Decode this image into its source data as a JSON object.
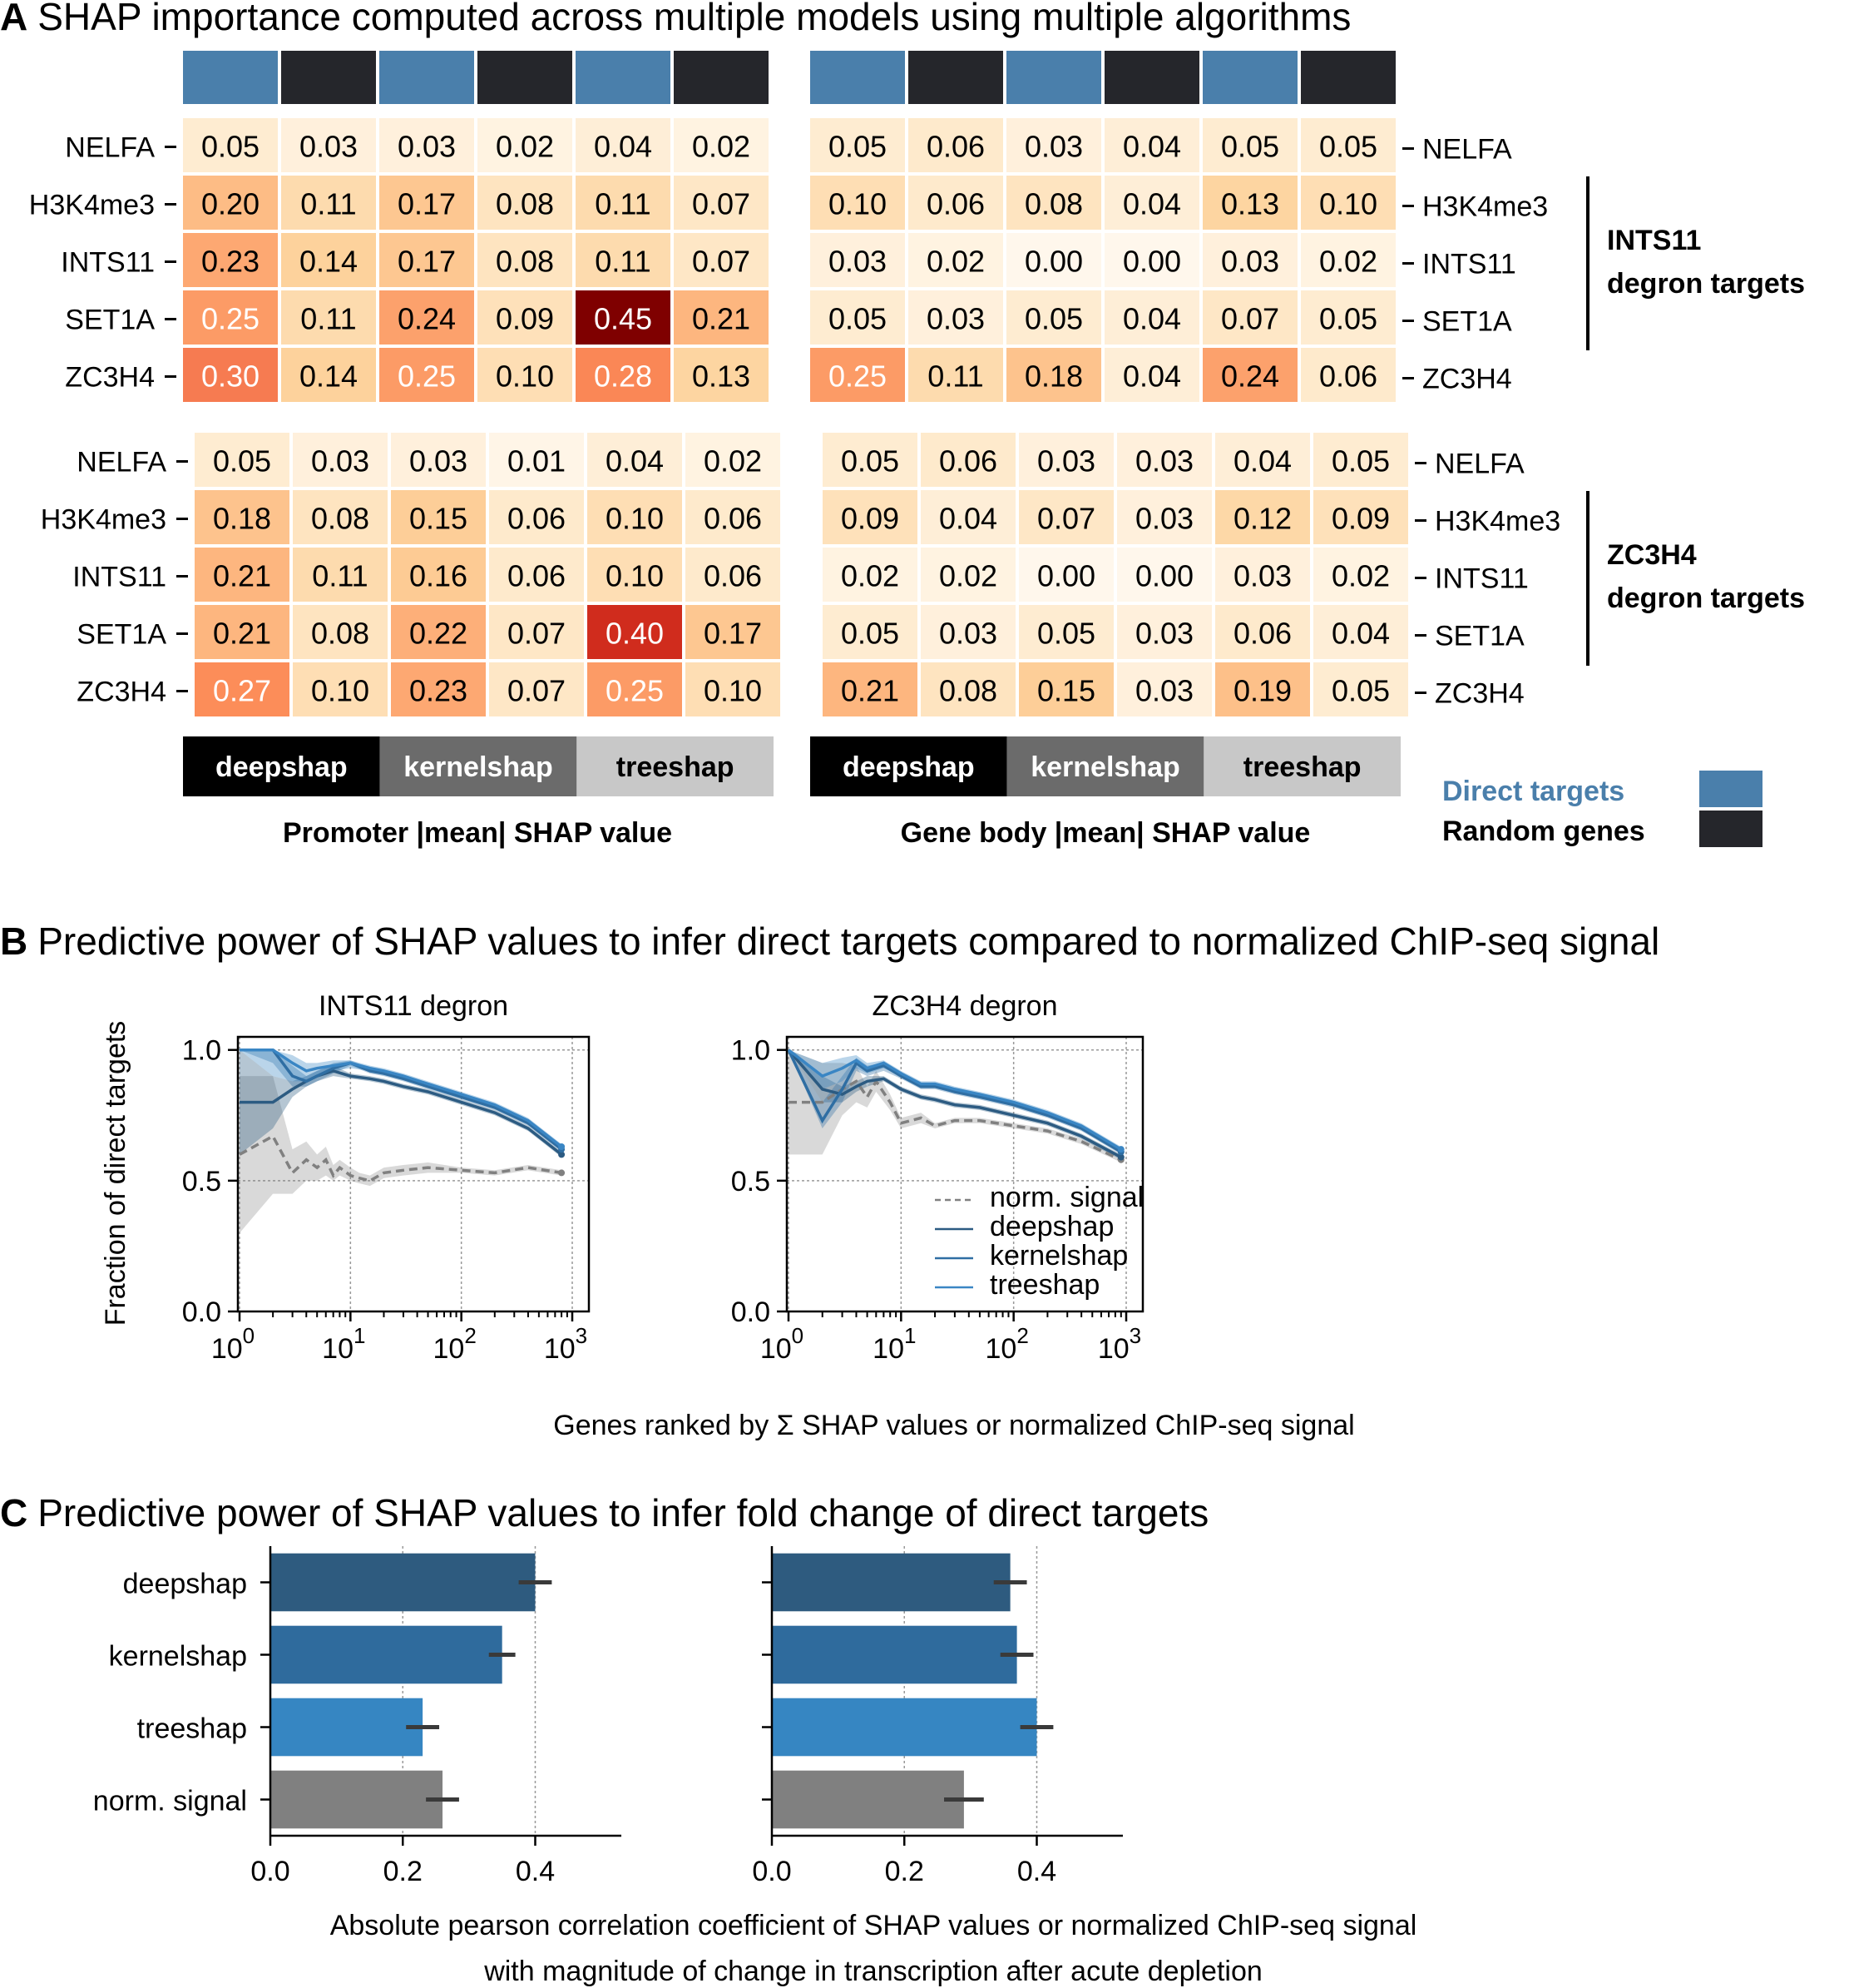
{
  "panel_a": {
    "letter": "A",
    "title": "SHAP importance computed across multiple models using multiple algorithms",
    "rows": [
      "NELFA",
      "H3K4me3",
      "INTS11",
      "SET1A",
      "ZC3H4"
    ],
    "column_pattern": [
      "Direct targets",
      "Random genes",
      "Direct targets",
      "Random genes",
      "Direct targets",
      "Random genes"
    ],
    "algorithms": [
      "deepshap",
      "kernelshap",
      "treeshap"
    ],
    "promoter_xlabel": "Promoter |mean| SHAP value",
    "genebody_xlabel": "Gene body |mean| SHAP value",
    "group1_label_line1": "INTS11",
    "group1_label_line2": "degron targets",
    "group2_label_line1": "ZC3H4",
    "group2_label_line2": "degron targets",
    "legend": {
      "direct": "Direct targets",
      "random": "Random genes"
    },
    "colors": {
      "direct": "#4a7fab",
      "random": "#25262b",
      "deepshap": "#000000",
      "kernelshap": "#6b6b6b",
      "treeshap": "#c8c8c8",
      "direct_label": "#4a7fab"
    }
  },
  "panel_b": {
    "letter": "B",
    "title": "Predictive power of SHAP values to infer direct targets compared to normalized ChIP-seq signal",
    "ylabel": "Fraction of direct targets",
    "xlabel": "Genes ranked by Σ SHAP values or normalized ChIP-seq signal",
    "legend": [
      "norm. signal",
      "deepshap",
      "kernelshap",
      "treeshap"
    ]
  },
  "panel_c": {
    "letter": "C",
    "title": "Predictive power of SHAP values to infer fold change of direct targets",
    "xlabel_line1": "Absolute pearson correlation coefficient of SHAP values or normalized ChIP-seq signal",
    "xlabel_line2": "with magnitude of change in transcription after acute depletion"
  },
  "chart_data": [
    {
      "type": "heatmap",
      "group": "INTS11 degron targets",
      "region": "Promoter",
      "rows": [
        "NELFA",
        "H3K4me3",
        "INTS11",
        "SET1A",
        "ZC3H4"
      ],
      "columns": [
        "deepshap Direct targets",
        "deepshap Random genes",
        "kernelshap Direct targets",
        "kernelshap Random genes",
        "treeshap Direct targets",
        "treeshap Random genes"
      ],
      "values": [
        [
          0.05,
          0.03,
          0.03,
          0.02,
          0.04,
          0.02
        ],
        [
          0.2,
          0.11,
          0.17,
          0.08,
          0.11,
          0.07
        ],
        [
          0.23,
          0.14,
          0.17,
          0.08,
          0.11,
          0.07
        ],
        [
          0.25,
          0.11,
          0.24,
          0.09,
          0.45,
          0.21
        ],
        [
          0.3,
          0.14,
          0.25,
          0.1,
          0.28,
          0.13
        ]
      ]
    },
    {
      "type": "heatmap",
      "group": "INTS11 degron targets",
      "region": "Gene body",
      "rows": [
        "NELFA",
        "H3K4me3",
        "INTS11",
        "SET1A",
        "ZC3H4"
      ],
      "columns": [
        "deepshap Direct targets",
        "deepshap Random genes",
        "kernelshap Direct targets",
        "kernelshap Random genes",
        "treeshap Direct targets",
        "treeshap Random genes"
      ],
      "values": [
        [
          0.05,
          0.06,
          0.03,
          0.04,
          0.05,
          0.05
        ],
        [
          0.1,
          0.06,
          0.08,
          0.04,
          0.13,
          0.1
        ],
        [
          0.03,
          0.02,
          0.0,
          0.0,
          0.03,
          0.02
        ],
        [
          0.05,
          0.03,
          0.05,
          0.04,
          0.07,
          0.05
        ],
        [
          0.25,
          0.11,
          0.18,
          0.04,
          0.24,
          0.06
        ]
      ]
    },
    {
      "type": "heatmap",
      "group": "ZC3H4 degron targets",
      "region": "Promoter",
      "rows": [
        "NELFA",
        "H3K4me3",
        "INTS11",
        "SET1A",
        "ZC3H4"
      ],
      "columns": [
        "deepshap Direct targets",
        "deepshap Random genes",
        "kernelshap Direct targets",
        "kernelshap Random genes",
        "treeshap Direct targets",
        "treeshap Random genes"
      ],
      "values": [
        [
          0.05,
          0.03,
          0.03,
          0.01,
          0.04,
          0.02
        ],
        [
          0.18,
          0.08,
          0.15,
          0.06,
          0.1,
          0.06
        ],
        [
          0.21,
          0.11,
          0.16,
          0.06,
          0.1,
          0.06
        ],
        [
          0.21,
          0.08,
          0.22,
          0.07,
          0.4,
          0.17
        ],
        [
          0.27,
          0.1,
          0.23,
          0.07,
          0.25,
          0.1
        ]
      ]
    },
    {
      "type": "heatmap",
      "group": "ZC3H4 degron targets",
      "region": "Gene body",
      "rows": [
        "NELFA",
        "H3K4me3",
        "INTS11",
        "SET1A",
        "ZC3H4"
      ],
      "columns": [
        "deepshap Direct targets",
        "deepshap Random genes",
        "kernelshap Direct targets",
        "kernelshap Random genes",
        "treeshap Direct targets",
        "treeshap Random genes"
      ],
      "values": [
        [
          0.05,
          0.06,
          0.03,
          0.03,
          0.04,
          0.05
        ],
        [
          0.09,
          0.04,
          0.07,
          0.03,
          0.12,
          0.09
        ],
        [
          0.02,
          0.02,
          0.0,
          0.0,
          0.03,
          0.02
        ],
        [
          0.05,
          0.03,
          0.05,
          0.03,
          0.06,
          0.04
        ],
        [
          0.21,
          0.08,
          0.15,
          0.03,
          0.19,
          0.05
        ]
      ]
    },
    {
      "type": "line",
      "title": "INTS11 degron",
      "xscale": "log",
      "xlim": [
        1,
        1000
      ],
      "ylim": [
        0,
        1.05
      ],
      "xticks": [
        1,
        10,
        100,
        1000
      ],
      "yticks": [
        0.0,
        0.5,
        1.0
      ],
      "xticklabels": [
        "10",
        "10",
        "10",
        "10"
      ],
      "xtick_exponents": [
        "0",
        "1",
        "2",
        "3"
      ],
      "yticklabels": [
        "0.0",
        "0.5",
        "1.0"
      ],
      "grid": true,
      "series": [
        {
          "name": "norm. signal",
          "style": "dashed",
          "color": "#808080",
          "x": [
            1,
            2,
            3,
            4,
            5,
            6,
            7,
            8,
            10,
            12,
            15,
            20,
            30,
            50,
            100,
            200,
            400,
            800
          ],
          "y": [
            0.6,
            0.67,
            0.53,
            0.58,
            0.55,
            0.58,
            0.52,
            0.55,
            0.52,
            0.51,
            0.5,
            0.53,
            0.54,
            0.55,
            0.54,
            0.53,
            0.55,
            0.53
          ],
          "band_low": [
            0.3,
            0.45,
            0.45,
            0.5,
            0.5,
            0.52,
            0.5,
            0.52,
            0.5,
            0.49,
            0.48,
            0.51,
            0.52,
            0.53,
            0.53,
            0.52,
            0.54,
            0.52
          ],
          "band_high": [
            0.9,
            0.9,
            0.62,
            0.65,
            0.6,
            0.63,
            0.56,
            0.58,
            0.55,
            0.53,
            0.52,
            0.55,
            0.56,
            0.57,
            0.55,
            0.54,
            0.56,
            0.54
          ]
        },
        {
          "name": "deepshap",
          "style": "solid",
          "color": "#2c5b82",
          "x": [
            1,
            2,
            3,
            4,
            5,
            7,
            10,
            15,
            20,
            30,
            50,
            100,
            200,
            400,
            800
          ],
          "y": [
            0.8,
            0.8,
            0.85,
            0.88,
            0.9,
            0.92,
            0.9,
            0.89,
            0.88,
            0.86,
            0.84,
            0.8,
            0.76,
            0.7,
            0.6
          ],
          "band_low": [
            0.6,
            0.7,
            0.82,
            0.86,
            0.88,
            0.9,
            0.89,
            0.88,
            0.87,
            0.85,
            0.83,
            0.79,
            0.75,
            0.69,
            0.59
          ],
          "band_high": [
            1.0,
            0.9,
            0.88,
            0.9,
            0.92,
            0.94,
            0.91,
            0.9,
            0.89,
            0.87,
            0.85,
            0.81,
            0.77,
            0.71,
            0.61
          ]
        },
        {
          "name": "kernelshap",
          "style": "solid",
          "color": "#2f6ea3",
          "x": [
            1,
            2,
            3,
            4,
            5,
            7,
            10,
            15,
            20,
            30,
            50,
            100,
            200,
            400,
            800
          ],
          "y": [
            1.0,
            1.0,
            0.9,
            0.88,
            0.9,
            0.93,
            0.95,
            0.92,
            0.91,
            0.89,
            0.86,
            0.82,
            0.78,
            0.72,
            0.62
          ],
          "band_low": [
            1.0,
            0.95,
            0.86,
            0.86,
            0.88,
            0.91,
            0.94,
            0.91,
            0.9,
            0.88,
            0.85,
            0.81,
            0.77,
            0.71,
            0.61
          ],
          "band_high": [
            1.0,
            1.0,
            0.94,
            0.9,
            0.92,
            0.95,
            0.96,
            0.93,
            0.92,
            0.9,
            0.87,
            0.83,
            0.79,
            0.73,
            0.63
          ]
        },
        {
          "name": "treeshap",
          "style": "solid",
          "color": "#3a86c4",
          "x": [
            1,
            2,
            3,
            4,
            5,
            7,
            10,
            15,
            20,
            30,
            50,
            100,
            200,
            400,
            800
          ],
          "y": [
            1.0,
            1.0,
            0.95,
            0.92,
            0.93,
            0.94,
            0.95,
            0.93,
            0.92,
            0.9,
            0.87,
            0.83,
            0.79,
            0.73,
            0.63
          ],
          "band_low": [
            1.0,
            0.9,
            0.88,
            0.88,
            0.9,
            0.92,
            0.93,
            0.92,
            0.91,
            0.89,
            0.86,
            0.82,
            0.78,
            0.72,
            0.62
          ],
          "band_high": [
            1.0,
            1.0,
            0.98,
            0.95,
            0.95,
            0.96,
            0.96,
            0.94,
            0.93,
            0.91,
            0.88,
            0.84,
            0.8,
            0.74,
            0.64
          ]
        }
      ]
    },
    {
      "type": "line",
      "title": "ZC3H4 degron",
      "xscale": "log",
      "xlim": [
        1,
        1000
      ],
      "ylim": [
        0,
        1.05
      ],
      "xticks": [
        1,
        10,
        100,
        1000
      ],
      "yticks": [
        0.0,
        0.5,
        1.0
      ],
      "xticklabels": [
        "10",
        "10",
        "10",
        "10"
      ],
      "xtick_exponents": [
        "0",
        "1",
        "2",
        "3"
      ],
      "yticklabels": [
        "0.0",
        "0.5",
        "1.0"
      ],
      "grid": true,
      "legend_position": "lower-right",
      "series": [
        {
          "name": "norm. signal",
          "style": "dashed",
          "color": "#808080",
          "x": [
            1,
            2,
            3,
            4,
            5,
            6,
            8,
            10,
            15,
            20,
            30,
            50,
            100,
            200,
            400,
            900
          ],
          "y": [
            0.8,
            0.8,
            0.85,
            0.88,
            0.82,
            0.88,
            0.8,
            0.72,
            0.74,
            0.71,
            0.73,
            0.73,
            0.71,
            0.69,
            0.65,
            0.58
          ],
          "band_low": [
            0.6,
            0.6,
            0.75,
            0.8,
            0.78,
            0.84,
            0.77,
            0.7,
            0.72,
            0.7,
            0.72,
            0.72,
            0.7,
            0.68,
            0.64,
            0.57
          ],
          "band_high": [
            1.0,
            0.95,
            0.95,
            0.94,
            0.86,
            0.92,
            0.83,
            0.74,
            0.76,
            0.72,
            0.74,
            0.74,
            0.72,
            0.7,
            0.66,
            0.59
          ]
        },
        {
          "name": "deepshap",
          "style": "solid",
          "color": "#2c5b82",
          "x": [
            1,
            2,
            3,
            4,
            5,
            7,
            10,
            15,
            20,
            30,
            50,
            100,
            200,
            400,
            900
          ],
          "y": [
            1.0,
            0.85,
            0.83,
            0.86,
            0.88,
            0.89,
            0.85,
            0.82,
            0.81,
            0.79,
            0.78,
            0.75,
            0.72,
            0.67,
            0.59
          ],
          "band_low": [
            1.0,
            0.8,
            0.8,
            0.84,
            0.86,
            0.88,
            0.84,
            0.81,
            0.8,
            0.78,
            0.77,
            0.74,
            0.71,
            0.66,
            0.58
          ],
          "band_high": [
            1.0,
            0.9,
            0.86,
            0.88,
            0.9,
            0.9,
            0.86,
            0.83,
            0.82,
            0.8,
            0.79,
            0.76,
            0.73,
            0.68,
            0.6
          ]
        },
        {
          "name": "kernelshap",
          "style": "solid",
          "color": "#2f6ea3",
          "x": [
            1,
            2,
            3,
            4,
            5,
            7,
            10,
            15,
            20,
            30,
            50,
            100,
            200,
            400,
            900
          ],
          "y": [
            1.0,
            0.73,
            0.85,
            0.95,
            0.92,
            0.94,
            0.9,
            0.86,
            0.86,
            0.84,
            0.82,
            0.79,
            0.75,
            0.7,
            0.61
          ],
          "band_low": [
            1.0,
            0.7,
            0.8,
            0.92,
            0.9,
            0.92,
            0.89,
            0.85,
            0.85,
            0.83,
            0.81,
            0.78,
            0.74,
            0.69,
            0.6
          ],
          "band_high": [
            1.0,
            0.8,
            0.9,
            0.97,
            0.94,
            0.95,
            0.91,
            0.87,
            0.87,
            0.85,
            0.83,
            0.8,
            0.76,
            0.71,
            0.62
          ]
        },
        {
          "name": "treeshap",
          "style": "solid",
          "color": "#3a86c4",
          "x": [
            1,
            2,
            3,
            4,
            5,
            7,
            10,
            15,
            20,
            30,
            50,
            100,
            200,
            400,
            900
          ],
          "y": [
            1.0,
            0.9,
            0.93,
            0.96,
            0.93,
            0.95,
            0.91,
            0.87,
            0.87,
            0.85,
            0.83,
            0.8,
            0.76,
            0.71,
            0.62
          ],
          "band_low": [
            1.0,
            0.85,
            0.88,
            0.93,
            0.91,
            0.93,
            0.9,
            0.86,
            0.86,
            0.84,
            0.82,
            0.79,
            0.75,
            0.7,
            0.61
          ],
          "band_high": [
            1.0,
            0.95,
            0.97,
            0.98,
            0.95,
            0.96,
            0.92,
            0.88,
            0.88,
            0.86,
            0.84,
            0.81,
            0.77,
            0.72,
            0.63
          ]
        }
      ]
    },
    {
      "type": "bar",
      "orientation": "horizontal",
      "categories": [
        "deepshap",
        "kernelshap",
        "treeshap",
        "norm. signal"
      ],
      "values": [
        0.4,
        0.35,
        0.23,
        0.26
      ],
      "errors": [
        0.025,
        0.02,
        0.025,
        0.025
      ],
      "colors": [
        "#2e5b7f",
        "#2f6b9d",
        "#3686c2",
        "#808080"
      ],
      "xlim": [
        0,
        0.53
      ],
      "xticks": [
        0.0,
        0.2,
        0.4
      ],
      "xticklabels": [
        "0.0",
        "0.2",
        "0.4"
      ],
      "grid": true
    },
    {
      "type": "bar",
      "orientation": "horizontal",
      "categories": [
        "deepshap",
        "kernelshap",
        "treeshap",
        "norm. signal"
      ],
      "values": [
        0.36,
        0.37,
        0.4,
        0.29
      ],
      "errors": [
        0.025,
        0.025,
        0.025,
        0.03
      ],
      "colors": [
        "#2e5b7f",
        "#2f6b9d",
        "#3686c2",
        "#808080"
      ],
      "xlim": [
        0,
        0.53
      ],
      "xticks": [
        0.0,
        0.2,
        0.4
      ],
      "xticklabels": [
        "0.0",
        "0.2",
        "0.4"
      ],
      "grid": true
    }
  ]
}
